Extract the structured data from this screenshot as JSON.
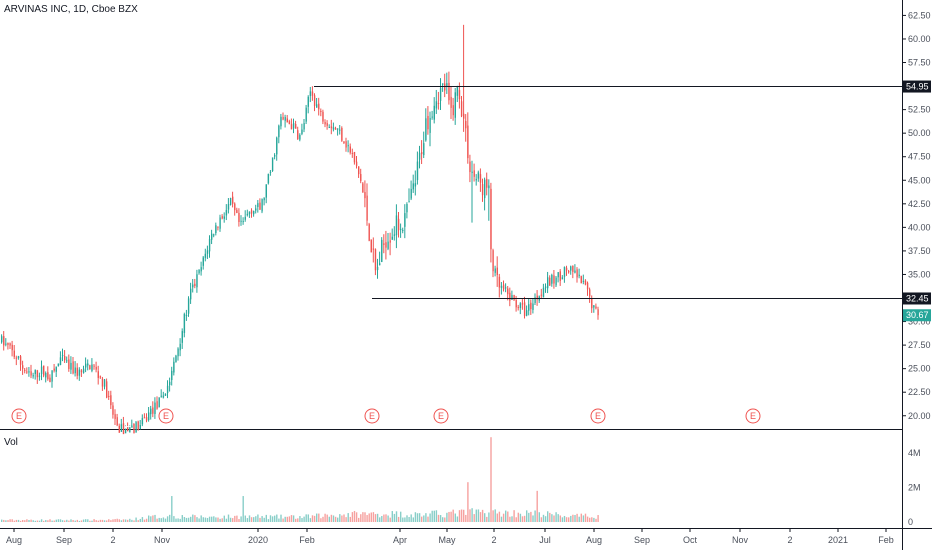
{
  "header": {
    "title": "ARVINAS INC, 1D, Cboe BZX"
  },
  "volume_pane": {
    "label": "Vol"
  },
  "colors": {
    "up": "#26a69a",
    "down": "#ef5350",
    "line": "#131722",
    "earnings": "#ef5350",
    "last": "#26a69a"
  },
  "chart_data": {
    "type": "candlestick",
    "title": "ARVINAS INC, 1D, Cboe BZX",
    "price_axis": {
      "ticks": [
        "62.50",
        "60.00",
        "57.50",
        "55.00",
        "52.50",
        "50.00",
        "47.50",
        "45.00",
        "42.50",
        "40.00",
        "37.50",
        "35.00",
        "32.50",
        "30.00",
        "27.50",
        "25.00",
        "22.50",
        "20.00"
      ],
      "range": [
        18.7,
        63.5
      ]
    },
    "volume_axis": {
      "ticks": [
        "4M",
        "2M",
        "0"
      ],
      "range": [
        0,
        5200000
      ]
    },
    "time_axis": {
      "labels": [
        "Aug",
        "Sep",
        "2",
        "Nov",
        "2020",
        "Feb",
        "Apr",
        "May",
        "2",
        "Jul",
        "Aug",
        "Sep",
        "Oct",
        "Nov",
        "2",
        "2021",
        "Feb"
      ]
    },
    "horizontal_lines": [
      {
        "price": 54.95,
        "label": "54.95"
      },
      {
        "price": 32.45,
        "label": "32.45"
      }
    ],
    "last_price": {
      "price": 30.67,
      "label": "30.67"
    },
    "earnings_markers": {
      "label": "E",
      "count": 6
    },
    "price_path": [
      [
        0,
        28
      ],
      [
        10,
        27
      ],
      [
        20,
        25.5
      ],
      [
        30,
        24
      ],
      [
        40,
        24.8
      ],
      [
        50,
        24
      ],
      [
        60,
        26
      ],
      [
        70,
        25
      ],
      [
        80,
        24.5
      ],
      [
        90,
        25.5
      ],
      [
        100,
        24
      ],
      [
        105,
        23
      ],
      [
        110,
        20.8
      ],
      [
        115,
        19.3
      ],
      [
        120,
        18.5
      ],
      [
        130,
        18.7
      ],
      [
        140,
        18.9
      ],
      [
        150,
        20.5
      ],
      [
        160,
        21.5
      ],
      [
        170,
        24
      ],
      [
        180,
        28.5
      ],
      [
        190,
        33
      ],
      [
        200,
        35.5
      ],
      [
        210,
        39
      ],
      [
        220,
        41
      ],
      [
        230,
        42.5
      ],
      [
        240,
        40
      ],
      [
        250,
        42
      ],
      [
        260,
        42
      ],
      [
        270,
        46
      ],
      [
        280,
        51.5
      ],
      [
        290,
        51
      ],
      [
        300,
        49.5
      ],
      [
        310,
        54.5
      ],
      [
        320,
        52
      ],
      [
        330,
        51
      ],
      [
        340,
        50
      ],
      [
        350,
        48
      ],
      [
        360,
        45
      ],
      [
        368,
        40
      ],
      [
        375,
        35
      ],
      [
        385,
        39
      ],
      [
        395,
        40
      ],
      [
        405,
        41
      ],
      [
        415,
        45
      ],
      [
        425,
        51
      ],
      [
        435,
        54
      ],
      [
        445,
        55
      ],
      [
        450,
        52
      ],
      [
        458,
        55
      ],
      [
        465,
        50
      ],
      [
        470,
        46
      ],
      [
        480,
        44.5
      ],
      [
        488,
        44
      ],
      [
        490,
        38
      ],
      [
        495,
        34
      ],
      [
        505,
        33
      ],
      [
        515,
        32
      ],
      [
        525,
        31
      ],
      [
        535,
        32.5
      ],
      [
        545,
        34
      ],
      [
        555,
        34.5
      ],
      [
        565,
        35.5
      ],
      [
        575,
        35
      ],
      [
        585,
        33.5
      ],
      [
        595,
        31
      ]
    ],
    "volume_envelope": [
      [
        0,
        0.12
      ],
      [
        100,
        0.12
      ],
      [
        130,
        0.15
      ],
      [
        150,
        0.3
      ],
      [
        170,
        0.35
      ],
      [
        200,
        0.3
      ],
      [
        240,
        0.32
      ],
      [
        300,
        0.3
      ],
      [
        340,
        0.45
      ],
      [
        380,
        0.5
      ],
      [
        420,
        0.45
      ],
      [
        460,
        0.55
      ],
      [
        480,
        0.6
      ],
      [
        500,
        0.55
      ],
      [
        540,
        0.5
      ],
      [
        570,
        0.35
      ],
      [
        600,
        0.35
      ]
    ],
    "volume_spikes": [
      {
        "price_x": 172,
        "value": 1.5
      },
      {
        "price_x": 242,
        "value": 1.5
      },
      {
        "price_x": 467,
        "value": 2.3
      },
      {
        "price_x": 491,
        "value": 4.9
      },
      {
        "price_x": 537,
        "value": 1.8
      }
    ]
  }
}
